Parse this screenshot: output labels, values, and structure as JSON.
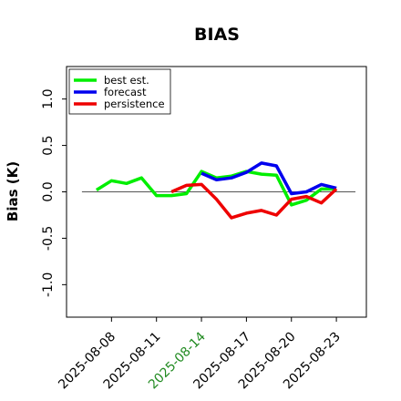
{
  "chart_data": {
    "type": "line",
    "title": "BIAS",
    "ylabel": "Bias (K)",
    "xlabel": "",
    "ylim": [
      -1.35,
      1.35
    ],
    "xlim": [
      "2025-08-05",
      "2025-08-25"
    ],
    "yticks": [
      -1.0,
      -0.5,
      0.0,
      0.5,
      1.0
    ],
    "ytick_labels": [
      "-1.0",
      "-0.5",
      "0.0",
      "0.5",
      "1.0"
    ],
    "xticks": [
      "2025-08-08",
      "2025-08-11",
      "2025-08-14",
      "2025-08-17",
      "2025-08-20",
      "2025-08-23"
    ],
    "highlight_tick": "2025-08-14",
    "highlight_color": "#228b22",
    "reference_line": 0.0,
    "grid": false,
    "legend_position": "upper-left",
    "series": [
      {
        "name": "best est.",
        "color": "#00ee00",
        "x": [
          "2025-08-07",
          "2025-08-08",
          "2025-08-09",
          "2025-08-10",
          "2025-08-11",
          "2025-08-12",
          "2025-08-13",
          "2025-08-14",
          "2025-08-15",
          "2025-08-16",
          "2025-08-17",
          "2025-08-18",
          "2025-08-19",
          "2025-08-20",
          "2025-08-21",
          "2025-08-22",
          "2025-08-23"
        ],
        "y": [
          0.02,
          0.12,
          0.09,
          0.15,
          -0.04,
          -0.04,
          -0.02,
          0.22,
          0.15,
          0.17,
          0.22,
          0.19,
          0.18,
          -0.14,
          -0.09,
          0.03,
          0.03
        ]
      },
      {
        "name": "forecast",
        "color": "#0000ee",
        "x": [
          "2025-08-14",
          "2025-08-15",
          "2025-08-16",
          "2025-08-17",
          "2025-08-18",
          "2025-08-19",
          "2025-08-20",
          "2025-08-21",
          "2025-08-22",
          "2025-08-23"
        ],
        "y": [
          0.2,
          0.13,
          0.15,
          0.21,
          0.31,
          0.28,
          -0.02,
          0.0,
          0.08,
          0.04
        ]
      },
      {
        "name": "persistence",
        "color": "#ee0000",
        "x": [
          "2025-08-12",
          "2025-08-13",
          "2025-08-14",
          "2025-08-15",
          "2025-08-16",
          "2025-08-17",
          "2025-08-18",
          "2025-08-19",
          "2025-08-20",
          "2025-08-21",
          "2025-08-22",
          "2025-08-23"
        ],
        "y": [
          0.0,
          0.07,
          0.08,
          -0.08,
          -0.28,
          -0.23,
          -0.2,
          -0.25,
          -0.08,
          -0.05,
          -0.12,
          0.03
        ]
      }
    ]
  }
}
